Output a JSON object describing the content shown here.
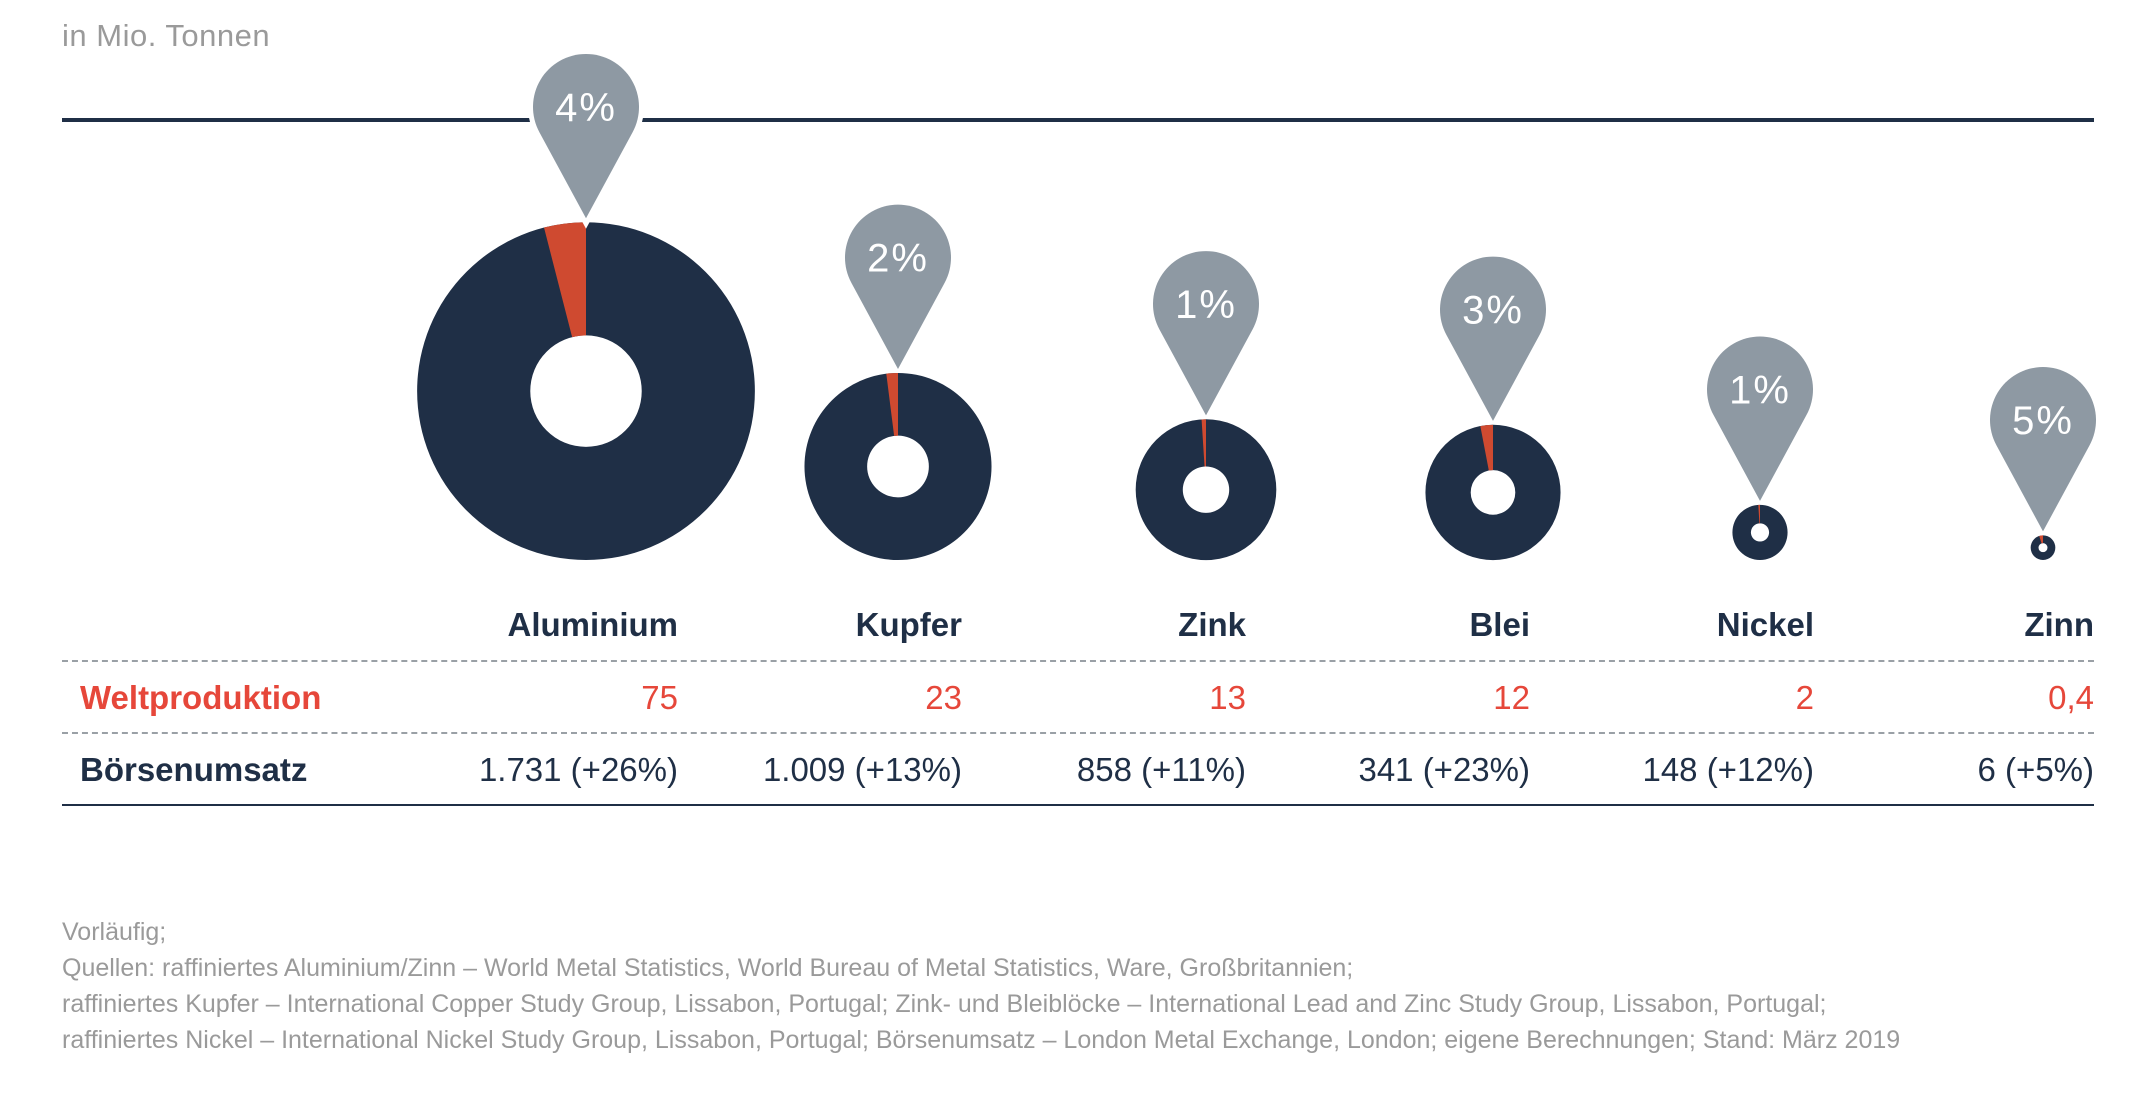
{
  "unit_label": "in Mio. Tonnen",
  "colors": {
    "donut": "#1f2f46",
    "share": "#cf4a30",
    "pin": "#8e99a3",
    "prod_text": "#e6473a"
  },
  "chart_data": {
    "type": "pie",
    "categories": [
      "Aluminium",
      "Kupfer",
      "Zink",
      "Blei",
      "Nickel",
      "Zinn"
    ],
    "shares": [
      "4%",
      "2%",
      "1%",
      "3%",
      "1%",
      "5%"
    ],
    "share_values": [
      4,
      2,
      1,
      3,
      1,
      5
    ],
    "weltproduktion": [
      75,
      23,
      13,
      12,
      2,
      0.4
    ],
    "boersenumsatz": [
      1731,
      1009,
      858,
      341,
      148,
      6
    ],
    "boersenumsatz_change_pct": [
      26,
      13,
      11,
      23,
      12,
      5
    ]
  },
  "table": {
    "headers": [
      "Aluminium",
      "Kupfer",
      "Zink",
      "Blei",
      "Nickel",
      "Zinn"
    ],
    "production_label": "Weltproduktion",
    "production": [
      "75",
      "23",
      "13",
      "12",
      "2",
      "0,4"
    ],
    "trade_label": "Börsenumsatz",
    "trade": [
      "1.731 (+26%)",
      "1.009 (+13%)",
      "858 (+11%)",
      "341 (+23%)",
      "148 (+12%)",
      "6 (+5%)"
    ]
  },
  "notes": [
    "Vorläufig;",
    "Quellen: raffiniertes Aluminium/Zinn – World Metal Statistics, World Bureau of Metal Statistics, Ware, Großbritannien;",
    "raffiniertes Kupfer – International Copper Study Group, Lissabon, Portugal; Zink- und Bleiblöcke – International Lead and Zinc Study Group, Lissabon, Portugal;",
    "raffiniertes Nickel – International Nickel Study Group, Lissabon, Portugal; Börsenumsatz – London Metal Exchange, London; eigene Berechnungen; Stand: März 2019"
  ]
}
